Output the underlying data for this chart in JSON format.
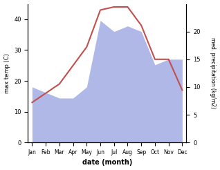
{
  "months": [
    "Jan",
    "Feb",
    "Mar",
    "Apr",
    "May",
    "Jun",
    "Jul",
    "Aug",
    "Sep",
    "Oct",
    "Nov",
    "Dec"
  ],
  "month_indices": [
    0,
    1,
    2,
    3,
    4,
    5,
    6,
    7,
    8,
    9,
    10,
    11
  ],
  "temp": [
    13,
    16,
    19,
    25,
    31,
    43,
    44,
    44,
    38,
    27,
    27,
    17
  ],
  "precip": [
    10,
    9,
    8,
    8,
    10,
    22,
    20,
    21,
    20,
    14,
    15,
    15
  ],
  "temp_color": "#c0504d",
  "precip_fill_color": "#b0b8e8",
  "temp_ylim": [
    0,
    45
  ],
  "precip_ylim": [
    0,
    25
  ],
  "temp_yticks": [
    0,
    10,
    20,
    30,
    40
  ],
  "precip_yticks": [
    0,
    5,
    10,
    15,
    20
  ],
  "xlabel": "date (month)",
  "ylabel_left": "max temp (C)",
  "ylabel_right": "med. precipitation (kg/m2)",
  "bg_color": "#ffffff"
}
